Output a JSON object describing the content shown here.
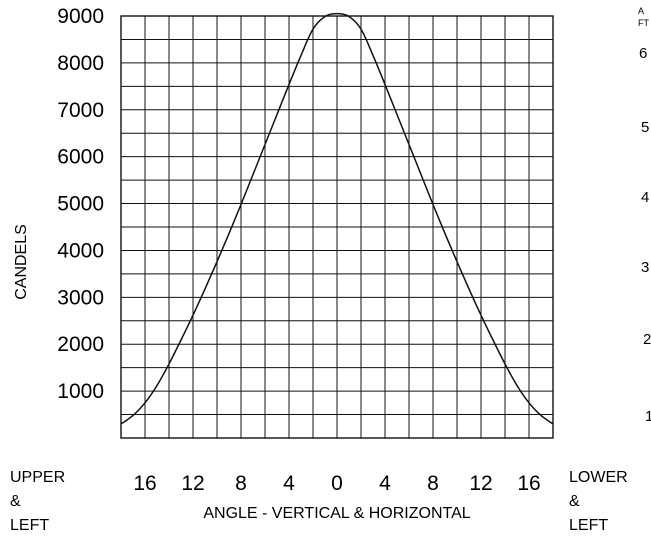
{
  "chart_data": {
    "type": "line",
    "ylabel": "CANDELS",
    "xlabel": "ANGLE - VERTICAL & HORIZONTAL",
    "yticks": [
      1000,
      2000,
      3000,
      4000,
      5000,
      6000,
      7000,
      8000,
      9000
    ],
    "xticks": [
      {
        "v": -16,
        "label": "16"
      },
      {
        "v": -12,
        "label": "12"
      },
      {
        "v": -8,
        "label": "8"
      },
      {
        "v": -4,
        "label": "4"
      },
      {
        "v": 0,
        "label": "0"
      },
      {
        "v": 4,
        "label": "4"
      },
      {
        "v": 8,
        "label": "8"
      },
      {
        "v": 12,
        "label": "12"
      },
      {
        "v": 16,
        "label": "16"
      }
    ],
    "xlim": [
      -18,
      18
    ],
    "ylim": [
      0,
      9000
    ],
    "grid": true,
    "series": [
      {
        "x": [
          -18,
          -17,
          -16,
          -15,
          -14,
          -13,
          -12,
          -11,
          -10,
          -9,
          -8,
          -7,
          -6,
          -5,
          -4,
          -3,
          -2,
          -1,
          0,
          1,
          2,
          3,
          4,
          5,
          6,
          7,
          8,
          9,
          10,
          11,
          12,
          13,
          14,
          15,
          16,
          17,
          18
        ],
        "y": [
          300,
          480,
          750,
          1120,
          1580,
          2090,
          2620,
          3180,
          3760,
          4360,
          4980,
          5620,
          6260,
          6900,
          7540,
          8160,
          8720,
          8990,
          9050,
          8990,
          8720,
          8160,
          7540,
          6900,
          6260,
          5620,
          4980,
          4360,
          3760,
          3180,
          2620,
          2090,
          1580,
          1120,
          750,
          480,
          300
        ]
      }
    ]
  },
  "labels": {
    "upper": "UPPER",
    "amp1": "&",
    "left1": "LEFT",
    "lower": "LOWER",
    "amp2": "&",
    "left2": "LEFT",
    "right_top_a": "A",
    "right_top_ft": "FT",
    "right_ticks": [
      "6",
      "5",
      "4",
      "3",
      "2",
      "1"
    ]
  }
}
